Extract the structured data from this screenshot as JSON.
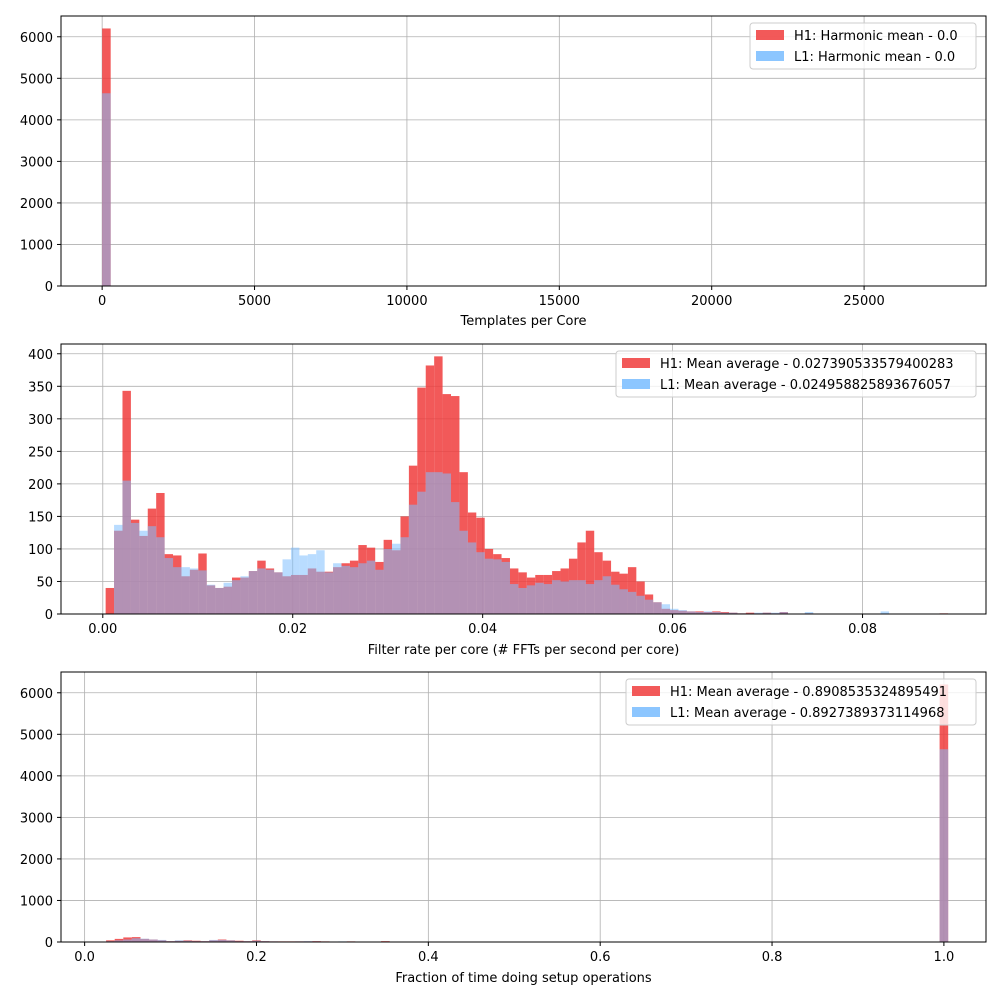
{
  "chart_data": [
    {
      "type": "bar",
      "xlabel": "Templates per Core",
      "ylabel": "",
      "xlim": [
        -1350,
        29000
      ],
      "ylim": [
        0,
        6500
      ],
      "xticks": [
        0,
        5000,
        10000,
        15000,
        20000,
        25000
      ],
      "xtick_labels": [
        "0",
        "5000",
        "10000",
        "15000",
        "20000",
        "25000"
      ],
      "yticks": [
        0,
        1000,
        2000,
        3000,
        4000,
        5000,
        6000
      ],
      "ytick_labels": [
        "0",
        "1000",
        "2000",
        "3000",
        "4000",
        "5000",
        "6000"
      ],
      "grid": true,
      "legend_position": "top-right",
      "bin_edges": [
        0,
        280,
        4480,
        4760,
        5040,
        5320,
        5600,
        5880,
        6160,
        6440,
        6720,
        7000,
        7280,
        7560,
        7840,
        8120,
        8400,
        8680,
        8960,
        9240,
        9520,
        9800,
        10080,
        10360,
        10640
      ],
      "series": [
        {
          "name": "H1: Harmonic mean  - 0.0",
          "color": "#f03c3c",
          "values": [
            6200,
            0,
            3,
            5,
            6,
            5,
            6,
            5,
            8,
            7,
            8,
            9,
            8,
            9,
            8,
            7,
            8,
            9,
            7,
            6,
            5,
            4,
            4,
            3
          ]
        },
        {
          "name": "L1: Harmonic mean  - 0.0",
          "color": "#80c0ff",
          "values": [
            4640,
            0,
            0,
            0,
            2,
            3,
            5,
            7,
            8,
            9,
            10,
            9,
            10,
            9,
            8,
            9,
            8,
            6,
            4,
            3,
            2,
            0,
            0,
            0
          ]
        }
      ]
    },
    {
      "type": "bar",
      "xlabel": "Filter rate per core (# FFTs per second per core)",
      "ylabel": "",
      "xlim": [
        -0.0044,
        0.093
      ],
      "ylim": [
        0,
        415
      ],
      "xticks": [
        0.0,
        0.02,
        0.04,
        0.06,
        0.08
      ],
      "xtick_labels": [
        "0.00",
        "0.02",
        "0.04",
        "0.06",
        "0.08"
      ],
      "yticks": [
        0,
        50,
        100,
        150,
        200,
        250,
        300,
        350,
        400
      ],
      "ytick_labels": [
        "0",
        "50",
        "100",
        "150",
        "200",
        "250",
        "300",
        "350",
        "400"
      ],
      "grid": true,
      "legend_position": "top-right",
      "bin_start": 0.0003,
      "bin_width": 0.000887,
      "series": [
        {
          "name": "H1: Mean average - 0.027390533579400283",
          "color": "#f03c3c",
          "values": [
            40,
            128,
            343,
            145,
            120,
            162,
            186,
            92,
            90,
            58,
            68,
            93,
            44,
            40,
            42,
            56,
            56,
            66,
            82,
            70,
            64,
            58,
            60,
            60,
            70,
            65,
            65,
            72,
            78,
            82,
            106,
            102,
            80,
            114,
            98,
            150,
            228,
            348,
            382,
            396,
            338,
            335,
            218,
            156,
            148,
            100,
            92,
            86,
            70,
            64,
            56,
            60,
            60,
            66,
            70,
            85,
            110,
            128,
            95,
            82,
            65,
            62,
            72,
            50,
            30,
            18,
            8,
            6,
            5,
            4,
            4,
            3,
            4,
            3,
            2,
            1,
            2,
            1,
            2,
            1,
            3,
            0,
            0,
            1,
            0,
            0,
            0,
            0,
            0,
            0,
            0,
            0,
            0,
            0,
            0,
            0,
            0,
            0,
            0,
            1
          ]
        },
        {
          "name": "L1: Mean average - 0.024958825893676057",
          "color": "#80c0ff",
          "values": [
            0,
            137,
            205,
            140,
            128,
            135,
            118,
            86,
            72,
            72,
            70,
            67,
            45,
            40,
            48,
            52,
            58,
            66,
            70,
            68,
            64,
            84,
            102,
            90,
            92,
            98,
            64,
            78,
            74,
            72,
            78,
            82,
            68,
            100,
            108,
            118,
            168,
            188,
            218,
            218,
            216,
            172,
            128,
            110,
            95,
            85,
            84,
            80,
            46,
            40,
            44,
            48,
            46,
            52,
            50,
            52,
            52,
            46,
            52,
            58,
            45,
            38,
            34,
            28,
            22,
            18,
            15,
            8,
            6,
            4,
            3,
            4,
            3,
            2,
            2,
            1,
            1,
            2,
            2,
            2,
            3,
            0,
            0,
            3,
            0,
            0,
            0,
            0,
            0,
            0,
            0,
            0,
            4,
            0,
            0,
            0,
            0,
            0,
            0,
            0
          ]
        }
      ]
    },
    {
      "type": "bar",
      "xlabel": "Fraction of time doing setup operations",
      "ylabel": "",
      "xlim": [
        -0.0275,
        1.049
      ],
      "ylim": [
        0,
        6500
      ],
      "xticks": [
        0.0,
        0.2,
        0.4,
        0.6,
        0.8,
        1.0
      ],
      "xtick_labels": [
        "0.0",
        "0.2",
        "0.4",
        "0.6",
        "0.8",
        "1.0"
      ],
      "yticks": [
        0,
        1000,
        2000,
        3000,
        4000,
        5000,
        6000
      ],
      "ytick_labels": [
        "0",
        "1000",
        "2000",
        "3000",
        "4000",
        "5000",
        "6000"
      ],
      "grid": true,
      "legend_position": "top-right",
      "bin_start": 0.025,
      "bin_width": 0.01,
      "series": [
        {
          "name": "H1: Mean average - 0.8908535324895491",
          "color": "#f03c3c",
          "values": [
            40,
            75,
            110,
            118,
            75,
            60,
            40,
            20,
            30,
            40,
            30,
            20,
            40,
            60,
            40,
            30,
            20,
            40,
            20,
            15,
            15,
            15,
            15,
            15,
            20,
            15,
            10,
            10,
            15,
            10,
            10,
            5,
            20,
            5,
            5,
            5,
            0,
            0,
            0,
            0,
            0,
            0,
            0,
            0,
            0,
            0,
            0,
            0,
            0,
            0,
            0,
            0,
            0,
            0,
            0,
            0,
            0,
            0,
            0,
            0,
            0,
            0,
            0,
            0,
            0,
            0,
            0,
            0,
            0,
            0,
            0,
            0,
            0,
            0,
            0,
            0,
            0,
            0,
            0,
            0,
            0,
            0,
            0,
            0,
            0,
            0,
            0,
            0,
            0,
            0,
            0,
            0,
            0,
            0,
            0,
            0,
            0,
            6200,
            0
          ]
        },
        {
          "name": "L1: Mean average - 0.8927389373114968",
          "color": "#80c0ff",
          "values": [
            20,
            40,
            60,
            90,
            80,
            60,
            50,
            20,
            40,
            30,
            20,
            20,
            50,
            50,
            40,
            20,
            20,
            30,
            20,
            15,
            10,
            10,
            15,
            20,
            15,
            10,
            10,
            15,
            10,
            10,
            10,
            5,
            5,
            0,
            0,
            0,
            0,
            0,
            0,
            0,
            0,
            0,
            0,
            0,
            0,
            0,
            0,
            0,
            0,
            0,
            0,
            0,
            0,
            0,
            0,
            0,
            0,
            0,
            0,
            0,
            0,
            0,
            0,
            0,
            0,
            0,
            0,
            0,
            0,
            0,
            0,
            0,
            0,
            0,
            0,
            0,
            0,
            0,
            0,
            0,
            0,
            0,
            0,
            0,
            0,
            0,
            0,
            0,
            0,
            0,
            0,
            0,
            0,
            0,
            0,
            0,
            0,
            4640,
            0
          ]
        }
      ]
    }
  ]
}
